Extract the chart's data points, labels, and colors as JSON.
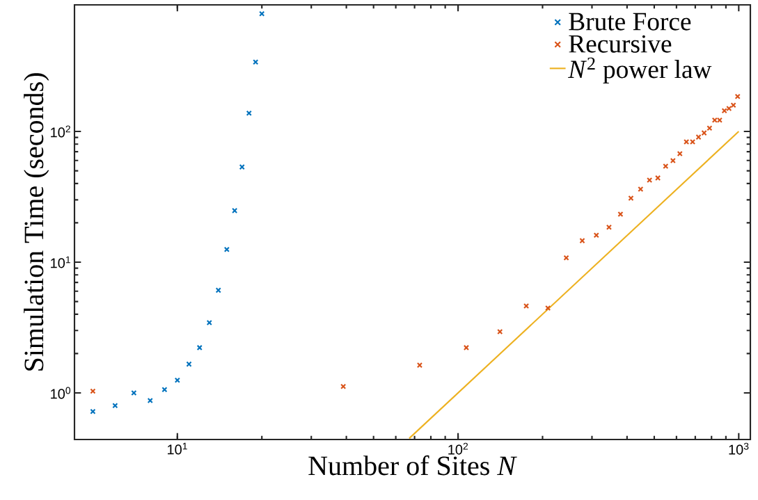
{
  "chart_data": {
    "type": "scatter",
    "xlabel": "Number of Sites *N*",
    "ylabel": "Simulation Time (seconds)",
    "log": "xy",
    "legend": "top right",
    "xlim": [
      4.3,
      1100
    ],
    "ylim": [
      0.44,
      930
    ],
    "xticks": [
      {
        "value": 10,
        "label": "10$^{1}$"
      },
      {
        "value": 100,
        "label": "10$^{2}$"
      },
      {
        "value": 1000,
        "label": "10$^{3}$"
      }
    ],
    "yticks": [
      {
        "value": 1,
        "label": "10$^{0}$"
      },
      {
        "value": 10,
        "label": "10$^{1}$"
      },
      {
        "value": 100,
        "label": "10$^{2}$"
      }
    ],
    "series": [
      {
        "name": "Brute Force",
        "marker": "cross",
        "color": "#0072bd",
        "x": [
          5,
          6,
          7,
          8,
          9,
          10,
          11,
          12,
          13,
          14,
          15,
          16,
          17,
          18,
          19,
          20
        ],
        "values": [
          0.72,
          0.8,
          1.0,
          0.875,
          1.06,
          1.25,
          1.66,
          2.22,
          3.45,
          6.1,
          12.5,
          24.8,
          53.5,
          138,
          340,
          795
        ]
      },
      {
        "name": "Recursive",
        "marker": "cross",
        "color": "#d95319",
        "x": [
          5,
          39,
          73,
          107,
          141,
          175,
          209,
          243,
          277,
          311,
          345,
          379,
          413,
          447,
          481,
          515,
          549,
          583,
          617,
          651,
          685,
          719,
          753,
          787,
          821,
          855,
          889,
          923,
          957,
          991
        ],
        "values": [
          1.03,
          1.12,
          1.63,
          2.22,
          2.94,
          4.62,
          4.46,
          10.8,
          14.6,
          16.1,
          18.5,
          23.3,
          30.9,
          36.2,
          42.4,
          44.1,
          54.2,
          59.8,
          67.6,
          83.2,
          83.2,
          90.6,
          97.5,
          106,
          122,
          122,
          144,
          150,
          159,
          185
        ]
      },
      {
        "name": "*N*$^{2}$ power law",
        "type": "line",
        "marker": "none",
        "color": "#edb120",
        "x": [
          67,
          1000
        ],
        "values": [
          0.4489,
          100
        ]
      }
    ]
  }
}
